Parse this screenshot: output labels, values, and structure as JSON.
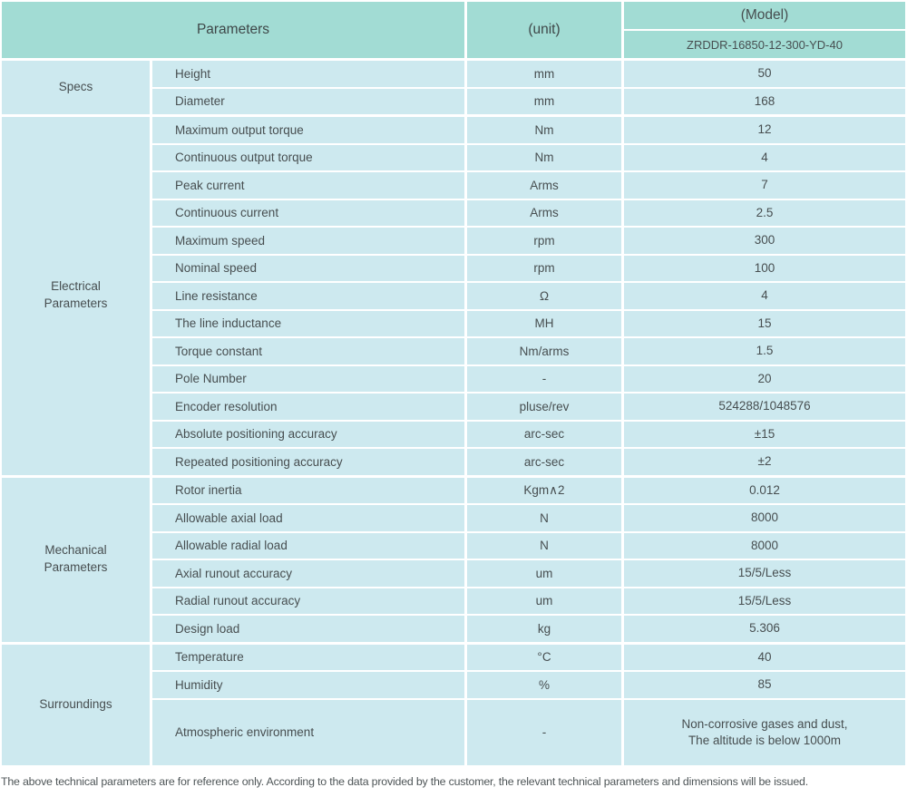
{
  "header": {
    "parameters": "Parameters",
    "unit": "(unit)",
    "model": "(Model)",
    "model_value": "ZRDDR-16850-12-300-YD-40"
  },
  "sections": [
    {
      "group": "Specs",
      "rows": [
        {
          "name": "Height",
          "unit": "mm",
          "value": "50"
        },
        {
          "name": "Diameter",
          "unit": "mm",
          "value": "168"
        }
      ]
    },
    {
      "group": "Electrical\nParameters",
      "rows": [
        {
          "name": "Maximum output torque",
          "unit": "Nm",
          "value": "12"
        },
        {
          "name": "Continuous output torque",
          "unit": "Nm",
          "value": "4"
        },
        {
          "name": "Peak current",
          "unit": "Arms",
          "value": "7"
        },
        {
          "name": "Continuous current",
          "unit": "Arms",
          "value": "2.5"
        },
        {
          "name": "Maximum speed",
          "unit": "rpm",
          "value": "300"
        },
        {
          "name": "Nominal speed",
          "unit": "rpm",
          "value": "100"
        },
        {
          "name": "Line resistance",
          "unit": "Ω",
          "value": "4"
        },
        {
          "name": "The line inductance",
          "unit": "MH",
          "value": "15"
        },
        {
          "name": "Torque constant",
          "unit": "Nm/arms",
          "value": "1.5"
        },
        {
          "name": "Pole Number",
          "unit": "-",
          "value": "20"
        },
        {
          "name": "Encoder resolution",
          "unit": "pluse/rev",
          "value": "524288/1048576"
        },
        {
          "name": "Absolute positioning accuracy",
          "unit": "arc-sec",
          "value": "±15"
        },
        {
          "name": "Repeated positioning accuracy",
          "unit": "arc-sec",
          "value": "±2"
        }
      ]
    },
    {
      "group": "Mechanical\nParameters",
      "rows": [
        {
          "name": "Rotor inertia",
          "unit": "Kgm∧2",
          "value": "0.012"
        },
        {
          "name": "Allowable axial load",
          "unit": "N",
          "value": "8000"
        },
        {
          "name": "Allowable radial load",
          "unit": "N",
          "value": "8000"
        },
        {
          "name": "Axial runout accuracy",
          "unit": "um",
          "value": "15/5/Less"
        },
        {
          "name": "Radial runout accuracy",
          "unit": "um",
          "value": "15/5/Less"
        },
        {
          "name": "Design load",
          "unit": "kg",
          "value": "5.306"
        }
      ]
    },
    {
      "group": "Surroundings",
      "rows": [
        {
          "name": "Temperature",
          "unit": "°C",
          "value": "40"
        },
        {
          "name": "Humidity",
          "unit": "%",
          "value": "85"
        },
        {
          "name": "Atmospheric environment",
          "unit": "-",
          "value": "Non-corrosive gases and dust,\nThe altitude is below 1000m"
        }
      ]
    }
  ],
  "footnote": "The above technical parameters are for reference only. According to the data provided by the customer, the relevant technical parameters and dimensions will be issued.",
  "colors": {
    "header_bg": "#a2dcd4",
    "cell_bg": "#cde9ef",
    "text": "#474e50"
  }
}
